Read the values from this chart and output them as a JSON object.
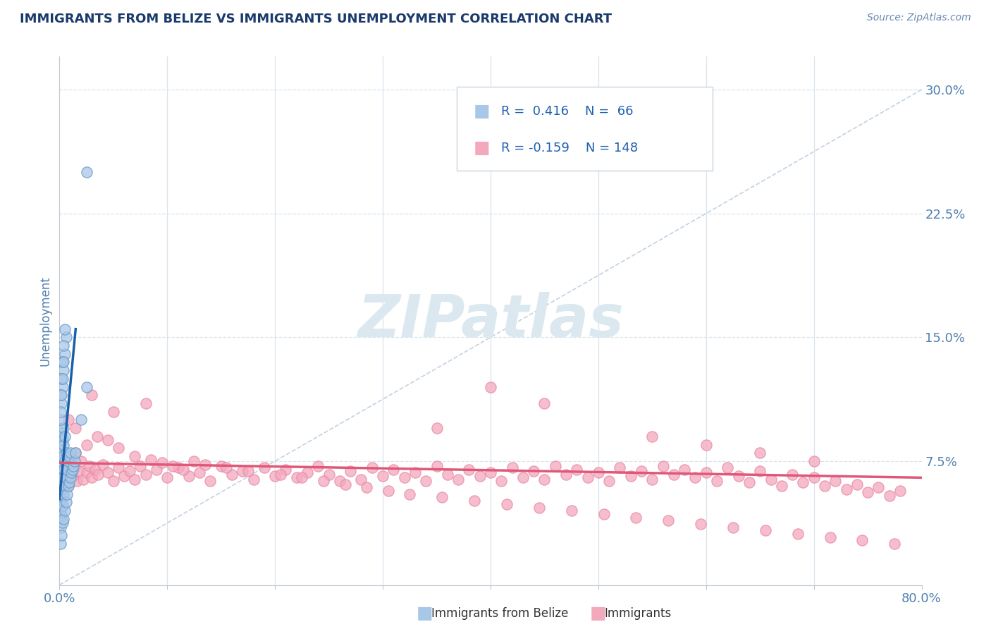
{
  "title": "IMMIGRANTS FROM BELIZE VS IMMIGRANTS UNEMPLOYMENT CORRELATION CHART",
  "source_text": "Source: ZipAtlas.com",
  "ylabel": "Unemployment",
  "xlim": [
    0.0,
    0.8
  ],
  "ylim": [
    0.0,
    0.32
  ],
  "xticks": [
    0.0,
    0.1,
    0.2,
    0.3,
    0.4,
    0.5,
    0.6,
    0.7,
    0.8
  ],
  "xticklabels": [
    "0.0%",
    "",
    "",
    "",
    "",
    "",
    "",
    "",
    "80.0%"
  ],
  "yticks_right": [
    0.075,
    0.15,
    0.225,
    0.3
  ],
  "yticklabels_right": [
    "7.5%",
    "15.0%",
    "22.5%",
    "30.0%"
  ],
  "blue_color": "#a8c8e8",
  "pink_color": "#f4a8bc",
  "blue_line_color": "#1a5fa8",
  "pink_line_color": "#e05878",
  "watermark": "ZIPatlas",
  "watermark_color": "#dce8f0",
  "title_color": "#1a3a6b",
  "axis_label_color": "#5080b0",
  "tick_color": "#5080b0",
  "background_color": "#ffffff",
  "blue_scatter_x": [
    0.001,
    0.001,
    0.001,
    0.001,
    0.001,
    0.001,
    0.001,
    0.001,
    0.002,
    0.002,
    0.002,
    0.002,
    0.002,
    0.002,
    0.002,
    0.002,
    0.003,
    0.003,
    0.003,
    0.003,
    0.003,
    0.003,
    0.003,
    0.004,
    0.004,
    0.004,
    0.004,
    0.004,
    0.005,
    0.005,
    0.005,
    0.005,
    0.006,
    0.006,
    0.006,
    0.007,
    0.007,
    0.008,
    0.008,
    0.009,
    0.009,
    0.01,
    0.01,
    0.011,
    0.012,
    0.013,
    0.014,
    0.015,
    0.02,
    0.025,
    0.001,
    0.002,
    0.003,
    0.004,
    0.005,
    0.006,
    0.001,
    0.002,
    0.003,
    0.004,
    0.005,
    0.001,
    0.002,
    0.003,
    0.004,
    0.025
  ],
  "blue_scatter_y": [
    0.025,
    0.035,
    0.045,
    0.055,
    0.065,
    0.075,
    0.085,
    0.095,
    0.03,
    0.042,
    0.052,
    0.062,
    0.072,
    0.082,
    0.092,
    0.06,
    0.038,
    0.048,
    0.058,
    0.068,
    0.078,
    0.088,
    0.065,
    0.04,
    0.055,
    0.07,
    0.085,
    0.095,
    0.045,
    0.06,
    0.075,
    0.09,
    0.05,
    0.065,
    0.08,
    0.055,
    0.07,
    0.06,
    0.075,
    0.062,
    0.078,
    0.065,
    0.08,
    0.068,
    0.07,
    0.072,
    0.075,
    0.08,
    0.1,
    0.12,
    0.1,
    0.11,
    0.12,
    0.13,
    0.14,
    0.15,
    0.115,
    0.125,
    0.135,
    0.145,
    0.155,
    0.105,
    0.115,
    0.125,
    0.135,
    0.25
  ],
  "pink_scatter_x": [
    0.001,
    0.002,
    0.003,
    0.004,
    0.005,
    0.006,
    0.007,
    0.008,
    0.009,
    0.01,
    0.012,
    0.014,
    0.016,
    0.018,
    0.02,
    0.022,
    0.025,
    0.028,
    0.03,
    0.033,
    0.036,
    0.04,
    0.045,
    0.05,
    0.055,
    0.06,
    0.065,
    0.07,
    0.075,
    0.08,
    0.09,
    0.1,
    0.11,
    0.12,
    0.13,
    0.14,
    0.15,
    0.16,
    0.17,
    0.18,
    0.19,
    0.2,
    0.21,
    0.22,
    0.23,
    0.24,
    0.25,
    0.26,
    0.27,
    0.28,
    0.29,
    0.3,
    0.31,
    0.32,
    0.33,
    0.34,
    0.35,
    0.36,
    0.37,
    0.38,
    0.39,
    0.4,
    0.41,
    0.42,
    0.43,
    0.44,
    0.45,
    0.46,
    0.47,
    0.48,
    0.49,
    0.5,
    0.51,
    0.52,
    0.53,
    0.54,
    0.55,
    0.56,
    0.57,
    0.58,
    0.59,
    0.6,
    0.61,
    0.62,
    0.63,
    0.64,
    0.65,
    0.66,
    0.67,
    0.68,
    0.69,
    0.7,
    0.71,
    0.72,
    0.73,
    0.74,
    0.75,
    0.76,
    0.77,
    0.78,
    0.015,
    0.025,
    0.035,
    0.045,
    0.055,
    0.07,
    0.085,
    0.095,
    0.105,
    0.115,
    0.125,
    0.135,
    0.155,
    0.175,
    0.205,
    0.225,
    0.245,
    0.265,
    0.285,
    0.305,
    0.325,
    0.355,
    0.385,
    0.415,
    0.445,
    0.475,
    0.505,
    0.535,
    0.565,
    0.595,
    0.625,
    0.655,
    0.685,
    0.715,
    0.745,
    0.775,
    0.008,
    0.015,
    0.03,
    0.05,
    0.08,
    0.35,
    0.4,
    0.45,
    0.55,
    0.6,
    0.65,
    0.7
  ],
  "pink_scatter_y": [
    0.068,
    0.062,
    0.072,
    0.058,
    0.075,
    0.065,
    0.07,
    0.06,
    0.068,
    0.074,
    0.066,
    0.071,
    0.063,
    0.069,
    0.075,
    0.064,
    0.068,
    0.072,
    0.065,
    0.07,
    0.067,
    0.073,
    0.068,
    0.063,
    0.071,
    0.066,
    0.069,
    0.064,
    0.072,
    0.067,
    0.07,
    0.065,
    0.071,
    0.066,
    0.068,
    0.063,
    0.072,
    0.067,
    0.069,
    0.064,
    0.071,
    0.066,
    0.07,
    0.065,
    0.068,
    0.072,
    0.067,
    0.063,
    0.069,
    0.064,
    0.071,
    0.066,
    0.07,
    0.065,
    0.068,
    0.063,
    0.072,
    0.067,
    0.064,
    0.07,
    0.066,
    0.068,
    0.063,
    0.071,
    0.065,
    0.069,
    0.064,
    0.072,
    0.067,
    0.07,
    0.065,
    0.068,
    0.063,
    0.071,
    0.066,
    0.069,
    0.064,
    0.072,
    0.067,
    0.07,
    0.065,
    0.068,
    0.063,
    0.071,
    0.066,
    0.062,
    0.069,
    0.064,
    0.06,
    0.067,
    0.062,
    0.065,
    0.06,
    0.063,
    0.058,
    0.061,
    0.056,
    0.059,
    0.054,
    0.057,
    0.08,
    0.085,
    0.09,
    0.088,
    0.083,
    0.078,
    0.076,
    0.074,
    0.072,
    0.07,
    0.075,
    0.073,
    0.071,
    0.069,
    0.067,
    0.065,
    0.063,
    0.061,
    0.059,
    0.057,
    0.055,
    0.053,
    0.051,
    0.049,
    0.047,
    0.045,
    0.043,
    0.041,
    0.039,
    0.037,
    0.035,
    0.033,
    0.031,
    0.029,
    0.027,
    0.025,
    0.1,
    0.095,
    0.115,
    0.105,
    0.11,
    0.095,
    0.12,
    0.11,
    0.09,
    0.085,
    0.08,
    0.075
  ],
  "blue_trend_x": [
    0.0,
    0.015
  ],
  "blue_trend_y": [
    0.052,
    0.155
  ],
  "pink_trend_x": [
    0.0,
    0.8
  ],
  "pink_trend_y": [
    0.074,
    0.065
  ],
  "dashed_line_x": [
    0.0,
    0.8
  ],
  "dashed_line_y": [
    0.0,
    0.3
  ],
  "grid_color": "#d8e4ec",
  "legend_r1": "R =  0.416",
  "legend_n1": "N =  66",
  "legend_r2": "R = -0.159",
  "legend_n2": "N = 148"
}
